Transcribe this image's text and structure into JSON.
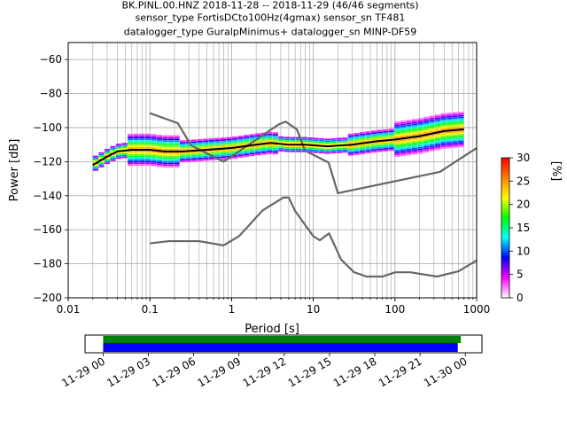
{
  "chart_data": {
    "type": "heatmap",
    "title": "BK.PINL.00.HNZ   2018-11-28 -- 2018-11-29  (46/46 segments)",
    "subtitle_lines": [
      "sensor_type FortisDCto100Hz(4gmax) sensor_sn TF481",
      "datalogger_type GuralpMinimus+ datalogger_sn MINP-DF59"
    ],
    "xlabel": "Period [s]",
    "ylabel": "Power [dB]",
    "xscale": "log",
    "xlim": [
      0.01,
      1000
    ],
    "ylim": [
      -200,
      -50
    ],
    "grid": true,
    "x_tick_labels": [
      "0.01",
      "0.1",
      "1",
      "10",
      "100",
      "1000"
    ],
    "x_ticks": [
      0.01,
      0.1,
      1,
      10,
      100,
      1000
    ],
    "y_ticks": [
      -200,
      -180,
      -160,
      -140,
      -120,
      -100,
      -80,
      -60
    ],
    "y_tick_labels": [
      "−200",
      "−180",
      "−160",
      "−140",
      "−120",
      "−100",
      "−80",
      "−60"
    ],
    "colorbar": {
      "label": "[%]",
      "ticks": [
        0,
        5,
        10,
        15,
        20,
        25,
        30
      ],
      "tick_labels": [
        "0",
        "5",
        "10",
        "15",
        "20",
        "25",
        "30"
      ],
      "colors": [
        "#ffffff",
        "#ff00ff",
        "#0000ff",
        "#00ffff",
        "#00ff00",
        "#ffff00",
        "#ff8000",
        "#ff0000"
      ]
    },
    "series": [
      {
        "role": "new-high-noise-model",
        "color": "#666666",
        "x": [
          0.1,
          0.22,
          0.32,
          0.8,
          3.8,
          4.6,
          6.3,
          7.9,
          15.4,
          20,
          354.8,
          1000
        ],
        "y": [
          -91.5,
          -97.4,
          -110.5,
          -120,
          -98,
          -96.5,
          -101,
          -113.5,
          -120.5,
          -138.5,
          -126,
          -112
        ]
      },
      {
        "role": "new-low-noise-model",
        "color": "#666666",
        "x": [
          0.1,
          0.17,
          0.4,
          0.8,
          1.24,
          2.4,
          4.3,
          5,
          6,
          10,
          12,
          15.6,
          21.9,
          31.6,
          45,
          70,
          101,
          154,
          328,
          600,
          1000
        ],
        "y": [
          -168,
          -166.7,
          -166.7,
          -169.2,
          -163.7,
          -148.6,
          -141.1,
          -141.1,
          -149,
          -163.8,
          -166.2,
          -162.1,
          -177.5,
          -185,
          -187.5,
          -187.5,
          -185,
          -185,
          -187.5,
          -184.4,
          -178
        ]
      },
      {
        "role": "mode",
        "color": "#000000",
        "x": [
          0.02,
          0.03,
          0.04,
          0.06,
          0.1,
          0.15,
          0.25,
          0.5,
          1,
          2,
          3,
          5,
          8,
          15,
          30,
          60,
          100,
          200,
          400,
          700
        ],
        "y": [
          -122,
          -117,
          -114,
          -113,
          -113,
          -114,
          -114,
          -113,
          -112,
          -110,
          -109,
          -110,
          -110,
          -111,
          -110,
          -108,
          -107,
          -105,
          -102,
          -101
        ]
      }
    ],
    "timeline": {
      "tick_labels": [
        "11-29 00",
        "11-29 03",
        "11-29 06",
        "11-29 09",
        "11-29 12",
        "11-29 15",
        "11-29 18",
        "11-29 21",
        "11-30 00"
      ],
      "ticks_hours": [
        0,
        3,
        6,
        9,
        12,
        15,
        18,
        21,
        24
      ],
      "xlim_hours": [
        -1.2,
        25.1
      ],
      "bars": [
        {
          "role": "data",
          "color": "#008000",
          "start_hours": 0,
          "end_hours": 23.7
        },
        {
          "role": "psd",
          "color": "#0000ff",
          "start_hours": 0,
          "end_hours": 23.5
        }
      ]
    }
  }
}
